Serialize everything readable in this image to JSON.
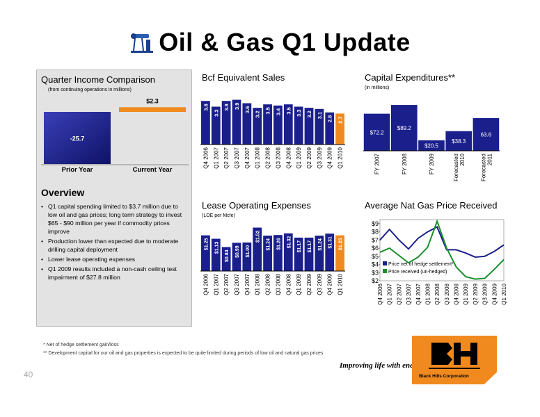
{
  "page": {
    "title": "Oil & Gas Q1 Update",
    "footnote1": "* Net of hedge settlement gain/loss",
    "footnote2": "** Development capital for our oil and gas properties is expected to be quite limited during periods of low oil and natural gas prices",
    "page_number": "40",
    "slogan": "Improving life with energy",
    "logo_text": "Black Hills Corporation",
    "colors": {
      "navy": "#1a1f8c",
      "orange": "#f08a1e"
    }
  },
  "overview": {
    "title": "Overview",
    "bullets": [
      "Q1 capital spending limited to $3.7 million due to low oil and gas prices; long term strategy to invest $65 - $90 million per year if commodity prices improve",
      "Production lower than expected due to moderate drilling capital deployment",
      "Lower lease operating expenses",
      "Q1 2009 results included a non-cash ceiling test impairment of $27.8 million"
    ]
  },
  "chart_data": [
    {
      "id": "quarter_income",
      "type": "bar",
      "title": "Quarter Income Comparison",
      "subtitle": "(from continuing operations in millions)",
      "categories": [
        "Prior Year",
        "Current Year"
      ],
      "values": [
        -25.7,
        2.3
      ],
      "labels": [
        "-25.7",
        "$2.3"
      ]
    },
    {
      "id": "bcf_sales",
      "type": "bar",
      "title": "Bcf Equivalent Sales",
      "categories": [
        "Q4 2006",
        "Q1 2007",
        "Q2 2007",
        "Q3 2007",
        "Q4 2007",
        "Q1 2008",
        "Q2 2008",
        "Q3 2008",
        "Q4 2008",
        "Q1 2009",
        "Q2 2009",
        "Q3 2009",
        "Q4 2009",
        "Q1 2010"
      ],
      "values": [
        3.8,
        3.3,
        3.8,
        3.9,
        3.6,
        3.2,
        3.5,
        3.4,
        3.5,
        3.3,
        3.2,
        3.1,
        2.8,
        2.7
      ],
      "labels": [
        "3.8",
        "3.3",
        "3.8",
        "3.9",
        "3.6",
        "3.2",
        "3.5",
        "3.4",
        "3.5",
        "3.3",
        "3.2",
        "3.1",
        "2.8",
        "2.7"
      ],
      "ylim": [
        0,
        4.6
      ]
    },
    {
      "id": "capex",
      "type": "bar",
      "title": "Capital Expenditures**",
      "subtitle": "(in millions)",
      "categories": [
        "FY 2007",
        "FY 2008",
        "FY 2009",
        "Forecasted 2010",
        "Forecasted 2011"
      ],
      "values": [
        72.2,
        89.2,
        20.5,
        38.3,
        63.6
      ],
      "labels": [
        "$72.2",
        "$89.2",
        "$20.5",
        "$38.3",
        "63.6"
      ],
      "ylim": [
        0,
        115
      ]
    },
    {
      "id": "loe",
      "type": "bar",
      "title": "Lease Operating Expenses",
      "subtitle": "(LOE per Mcfe)",
      "categories": [
        "Q4 2006",
        "Q1 2007",
        "Q2 2007",
        "Q3 2007",
        "Q4 2007",
        "Q1 2008",
        "Q2 2008",
        "Q3 2008",
        "Q4 2008",
        "Q1 2009",
        "Q2 2009",
        "Q3 2009",
        "Q4 2009",
        "Q1 2010"
      ],
      "values": [
        1.25,
        1.13,
        0.84,
        0.99,
        1.0,
        1.52,
        1.24,
        1.26,
        1.32,
        1.17,
        1.17,
        1.24,
        1.31,
        1.25
      ],
      "labels": [
        "$1.25",
        "$1.13",
        "$0.84",
        "$0.99",
        "$1.00",
        "$1.52",
        "$1.24",
        "$1.26",
        "$1.32",
        "$1.17",
        "$1.17",
        "$1.24",
        "$1.31",
        "$1.25"
      ],
      "ylim": [
        0,
        1.8
      ]
    },
    {
      "id": "gas_price",
      "type": "line",
      "title": "Average Nat Gas Price Received",
      "categories": [
        "Q4 2006",
        "Q1 2007",
        "Q2 2007",
        "Q3 2007",
        "Q4 2007",
        "Q1 2008",
        "Q2 2008",
        "Q3 2008",
        "Q4 2008",
        "Q1 2009",
        "Q2 2009",
        "Q3 2009",
        "Q4 2009",
        "Q1 2010"
      ],
      "yticks": [
        "$2",
        "$3",
        "$4",
        "$5",
        "$6",
        "$7",
        "$8",
        "$9"
      ],
      "ylim": [
        2,
        9.5
      ],
      "series": [
        {
          "name": "Price net of hedge settlement*",
          "color": "#1a1f8c",
          "values": [
            7.0,
            8.3,
            7.0,
            5.9,
            7.2,
            8.0,
            8.6,
            5.8,
            5.8,
            5.4,
            4.9,
            5.0,
            5.6,
            6.4
          ]
        },
        {
          "name": "Price received (un-hedged)",
          "color": "#1a8f2a",
          "values": [
            5.5,
            6.0,
            5.1,
            4.2,
            4.9,
            6.1,
            9.3,
            6.0,
            3.7,
            2.5,
            2.2,
            2.3,
            3.4,
            4.6
          ]
        }
      ]
    }
  ]
}
